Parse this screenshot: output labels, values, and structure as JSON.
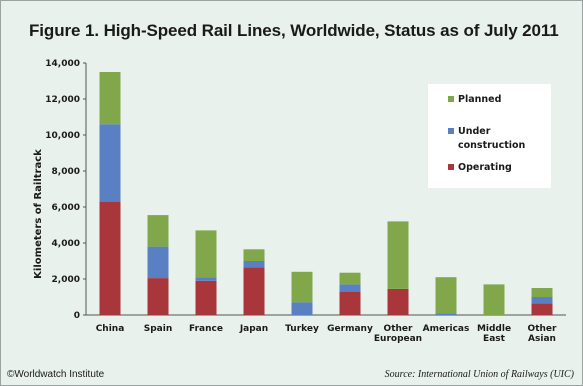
{
  "chart_data": {
    "type": "bar",
    "stacked": true,
    "title": "Figure 1. High-Speed Rail Lines, Worldwide, Status as of July 2011",
    "ylabel": "Kilometers of Railtrack",
    "xlabel": "",
    "ylim": [
      0,
      14000
    ],
    "yticks": [
      "0",
      "2,000",
      "4,000",
      "6,000",
      "8,000",
      "10,000",
      "12,000",
      "14,000"
    ],
    "categories": [
      [
        "China"
      ],
      [
        "Spain"
      ],
      [
        "France"
      ],
      [
        "Japan"
      ],
      [
        "Turkey"
      ],
      [
        "Germany"
      ],
      [
        "Other",
        "European"
      ],
      [
        "Americas"
      ],
      [
        "Middle",
        "East"
      ],
      [
        "Other",
        "Asian"
      ]
    ],
    "series": [
      {
        "name": "Operating",
        "color": "#a8363a",
        "values": [
          6300,
          2050,
          1900,
          2650,
          0,
          1300,
          1450,
          0,
          0,
          650
        ]
      },
      {
        "name": "Under construction",
        "color": "#5a80c4",
        "values": [
          4300,
          1750,
          200,
          350,
          700,
          400,
          0,
          100,
          0,
          350
        ]
      },
      {
        "name": "Planned",
        "color": "#80a84a",
        "values": [
          2900,
          1750,
          2600,
          650,
          1700,
          650,
          3750,
          2000,
          1700,
          500
        ]
      }
    ],
    "legend_position": "top-right",
    "grid": false
  },
  "legend": {
    "planned": "Planned",
    "under_1": "Under",
    "under_2": "construction",
    "operating": "Operating"
  },
  "footer": {
    "left": "©Worldwatch Institute",
    "right": "Source:  International Union of Railways (UIC)"
  }
}
